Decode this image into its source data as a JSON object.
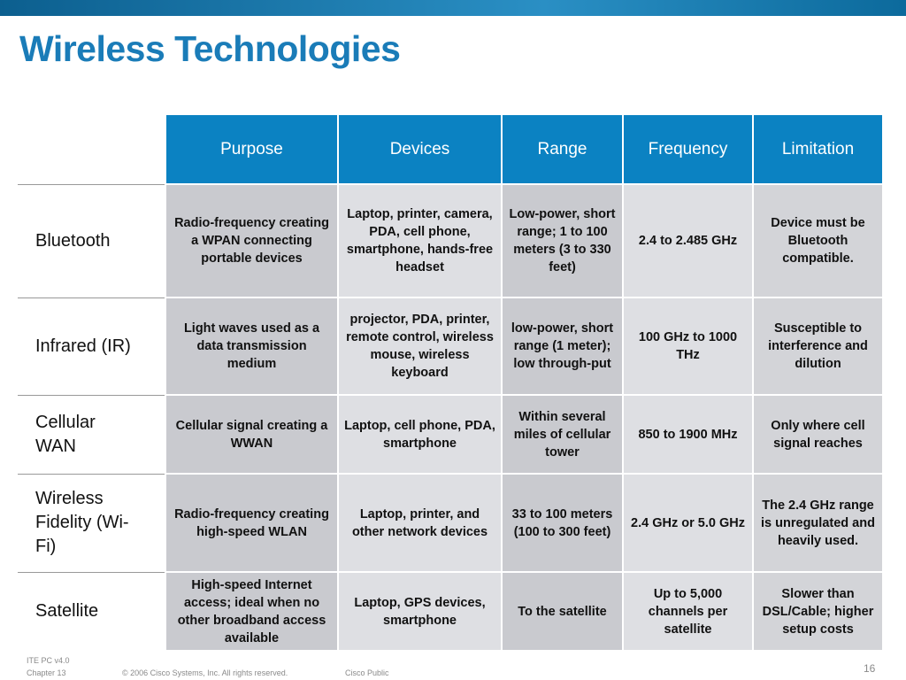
{
  "header": {
    "title": "Wireless Technologies"
  },
  "table": {
    "columns": [
      "Purpose",
      "Devices",
      "Range",
      "Frequency",
      "Limitation"
    ],
    "rows": [
      {
        "label": "Bluetooth",
        "cells": [
          "Radio-frequency creating a WPAN connecting portable devices",
          "Laptop, printer, camera, PDA, cell phone, smartphone, hands-free headset",
          "Low-power, short range; 1 to 100 meters (3 to 330 feet)",
          "2.4 to 2.485 GHz",
          "Device must be Bluetooth compatible."
        ]
      },
      {
        "label": "Infrared (IR)",
        "cells": [
          "Light waves used as a data transmission medium",
          "projector, PDA, printer, remote control, wireless mouse, wireless keyboard",
          "low-power, short range (1 meter); low through-put",
          "100 GHz to 1000 THz",
          "Susceptible to interference and dilution"
        ]
      },
      {
        "label": "Cellular WAN",
        "cells": [
          "Cellular signal creating a WWAN",
          "Laptop, cell phone, PDA, smartphone",
          "Within several miles of cellular tower",
          "850 to 1900 MHz",
          "Only where cell signal reaches"
        ]
      },
      {
        "label": "Wireless Fidelity (Wi-Fi)",
        "cells": [
          "Radio-frequency creating high-speed WLAN",
          "Laptop, printer, and other network devices",
          "33 to 100 meters (100 to 300 feet)",
          "2.4 GHz or 5.0 GHz",
          "The 2.4 GHz range is unregulated and heavily used."
        ]
      },
      {
        "label": "Satellite",
        "cells": [
          "High-speed Internet access; ideal when no other broadband access available",
          "Laptop, GPS devices, smartphone",
          "To the satellite",
          "Up to 5,000 channels per satellite",
          "Slower than DSL/Cable; higher setup costs"
        ]
      }
    ]
  },
  "footer": {
    "course": "ITE PC v4.0",
    "chapter": "Chapter 13",
    "copyright": "© 2006 Cisco Systems, Inc. All rights reserved.",
    "classification": "Cisco Public",
    "page": "16"
  }
}
